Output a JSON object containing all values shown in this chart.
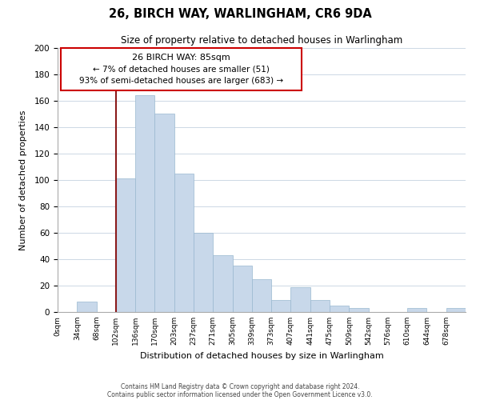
{
  "title": "26, BIRCH WAY, WARLINGHAM, CR6 9DA",
  "subtitle": "Size of property relative to detached houses in Warlingham",
  "xlabel": "Distribution of detached houses by size in Warlingham",
  "ylabel": "Number of detached properties",
  "bar_color": "#c8d8ea",
  "bar_edge_color": "#99b8d0",
  "categories": [
    "0sqm",
    "34sqm",
    "68sqm",
    "102sqm",
    "136sqm",
    "170sqm",
    "203sqm",
    "237sqm",
    "271sqm",
    "305sqm",
    "339sqm",
    "373sqm",
    "407sqm",
    "441sqm",
    "475sqm",
    "509sqm",
    "542sqm",
    "576sqm",
    "610sqm",
    "644sqm",
    "678sqm"
  ],
  "values": [
    0,
    8,
    0,
    101,
    164,
    150,
    105,
    60,
    43,
    35,
    25,
    9,
    19,
    9,
    5,
    3,
    0,
    0,
    3,
    0,
    3
  ],
  "ylim": [
    0,
    200
  ],
  "yticks": [
    0,
    20,
    40,
    60,
    80,
    100,
    120,
    140,
    160,
    180,
    200
  ],
  "marker_index": 3,
  "marker_color": "#8b1a1a",
  "annotation_title": "26 BIRCH WAY: 85sqm",
  "annotation_line1": "← 7% of detached houses are smaller (51)",
  "annotation_line2": "93% of semi-detached houses are larger (683) →",
  "footer1": "Contains HM Land Registry data © Crown copyright and database right 2024.",
  "footer2": "Contains public sector information licensed under the Open Government Licence v3.0.",
  "background_color": "#ffffff",
  "grid_color": "#ccd8e4"
}
